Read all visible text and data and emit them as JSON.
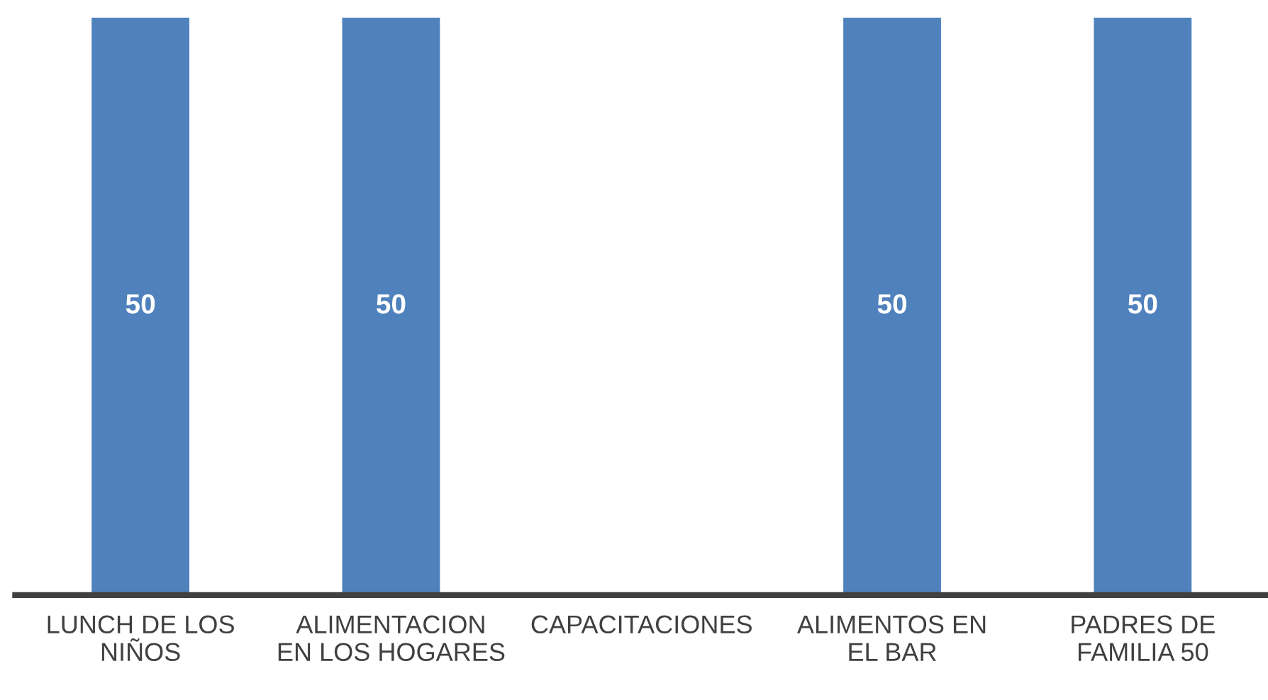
{
  "chart_data": {
    "type": "bar",
    "categories": [
      "LUNCH DE LOS NIÑOS",
      "ALIMENTACION EN LOS HOGARES",
      "CAPACITACIONES",
      "ALIMENTOS EN EL BAR",
      "PADRES DE FAMILIA 50"
    ],
    "values": [
      50,
      50,
      0,
      50,
      50
    ],
    "color": "#4f81bd",
    "value_labels": [
      "50",
      "50",
      null,
      "50",
      "50"
    ],
    "grid": false,
    "legend": false
  }
}
